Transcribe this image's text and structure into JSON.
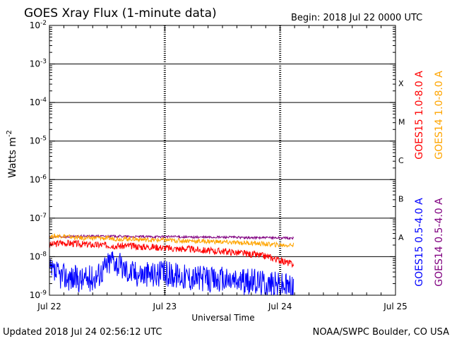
{
  "chart_data": {
    "type": "line",
    "title": "GOES Xray Flux (1-minute data)",
    "begin_label": "Begin:  2018 Jul 22 0000 UTC",
    "xlabel": "Universal Time",
    "ylabel": "Watts m",
    "ylabel_exponent": "-2",
    "y_scale": "log",
    "ylim": [
      1e-09,
      0.01
    ],
    "y_ticks": [
      {
        "value": 1e-09,
        "base": "10",
        "exp": "-9"
      },
      {
        "value": 1e-08,
        "base": "10",
        "exp": "-8"
      },
      {
        "value": 1e-07,
        "base": "10",
        "exp": "-7"
      },
      {
        "value": 1e-06,
        "base": "10",
        "exp": "-6"
      },
      {
        "value": 1e-05,
        "base": "10",
        "exp": "-5"
      },
      {
        "value": 0.0001,
        "base": "10",
        "exp": "-4"
      },
      {
        "value": 0.001,
        "base": "10",
        "exp": "-3"
      },
      {
        "value": 0.01,
        "base": "10",
        "exp": "-2"
      }
    ],
    "x_ticks": [
      {
        "label": "Jul 22",
        "day": 0
      },
      {
        "label": "Jul 23",
        "day": 1
      },
      {
        "label": "Jul 24",
        "day": 2
      },
      {
        "label": "Jul 25",
        "day": 3
      }
    ],
    "x_range_days": [
      0,
      3
    ],
    "data_end_day": 2.12,
    "flare_classes": [
      {
        "label": "A",
        "value": 1e-08
      },
      {
        "label": "B",
        "value": 1e-07
      },
      {
        "label": "C",
        "value": 1e-06
      },
      {
        "label": "M",
        "value": 1e-05
      },
      {
        "label": "X",
        "value": 0.0001
      }
    ],
    "gridlines_at": [
      1e-08,
      1e-07,
      1e-06,
      1e-05,
      0.0001,
      0.001
    ],
    "series": [
      {
        "name": "GOES15 1.0-8.0 A",
        "color": "#ff0000",
        "legend_group": "long",
        "x": [
          0,
          0.1,
          0.2,
          0.3,
          0.4,
          0.5,
          0.6,
          0.7,
          0.8,
          0.9,
          1.0,
          1.1,
          1.2,
          1.3,
          1.4,
          1.5,
          1.6,
          1.7,
          1.8,
          1.9,
          2.0,
          2.1
        ],
        "y": [
          2e-08,
          2.3e-08,
          2.2e-08,
          2.1e-08,
          2e-08,
          2e-08,
          1.9e-08,
          1.9e-08,
          1.8e-08,
          1.8e-08,
          1.7e-08,
          1.6e-08,
          1.6e-08,
          1.5e-08,
          1.4e-08,
          1.4e-08,
          1.3e-08,
          1.2e-08,
          1.1e-08,
          1e-08,
          8e-09,
          6.5e-09
        ]
      },
      {
        "name": "GOES14 1.0-8.0 A",
        "color": "#ffa500",
        "legend_group": "long",
        "x": [
          0,
          0.1,
          0.2,
          0.3,
          0.4,
          0.5,
          0.6,
          0.7,
          0.8,
          0.9,
          1.0,
          1.1,
          1.2,
          1.3,
          1.4,
          1.5,
          1.6,
          1.7,
          1.8,
          1.9,
          2.0,
          2.1
        ],
        "y": [
          3.3e-08,
          3.5e-08,
          3.2e-08,
          3e-08,
          3.1e-08,
          3e-08,
          2.9e-08,
          2.9e-08,
          2.8e-08,
          2.7e-08,
          2.7e-08,
          2.6e-08,
          2.6e-08,
          2.5e-08,
          2.5e-08,
          2.4e-08,
          2.3e-08,
          2.3e-08,
          2.2e-08,
          2.1e-08,
          2e-08,
          2e-08
        ]
      },
      {
        "name": "GOES15 0.5-4.0 A",
        "color": "#0000ff",
        "legend_group": "short",
        "x": [
          0,
          0.1,
          0.2,
          0.3,
          0.4,
          0.5,
          0.55,
          0.6,
          0.7,
          0.8,
          0.9,
          1.0,
          1.1,
          1.2,
          1.3,
          1.4,
          1.5,
          1.6,
          1.7,
          1.8,
          1.9,
          2.0,
          2.1
        ],
        "y": [
          4e-09,
          3.2e-09,
          2.8e-09,
          2.5e-09,
          3e-09,
          6e-09,
          9.5e-09,
          6e-09,
          4e-09,
          3.6e-09,
          3.5e-09,
          3.6e-09,
          3.4e-09,
          3e-09,
          2.8e-09,
          2.5e-09,
          2.5e-09,
          2.4e-09,
          2.2e-09,
          2.3e-09,
          2e-09,
          1.9e-09,
          1.7e-09
        ]
      },
      {
        "name": "GOES14 0.5-4.0 A",
        "color": "#800080",
        "legend_group": "short",
        "x": [
          0,
          0.1,
          0.2,
          0.3,
          0.4,
          0.5,
          0.6,
          0.7,
          0.8,
          0.9,
          1.0,
          1.1,
          1.2,
          1.3,
          1.4,
          1.5,
          1.6,
          1.7,
          1.8,
          1.9,
          2.0,
          2.1
        ],
        "y": [
          3.2e-08,
          3.3e-08,
          3.3e-08,
          3.4e-08,
          3.4e-08,
          3.4e-08,
          3.4e-08,
          3.3e-08,
          3.3e-08,
          3.3e-08,
          3.3e-08,
          3.3e-08,
          3.2e-08,
          3.2e-08,
          3.2e-08,
          3.2e-08,
          3.2e-08,
          3.1e-08,
          3.1e-08,
          3.1e-08,
          3.1e-08,
          3e-08
        ]
      }
    ]
  },
  "footer": {
    "updated": "Updated 2018 Jul 24 02:56:12 UTC",
    "source": "NOAA/SWPC Boulder, CO USA"
  }
}
